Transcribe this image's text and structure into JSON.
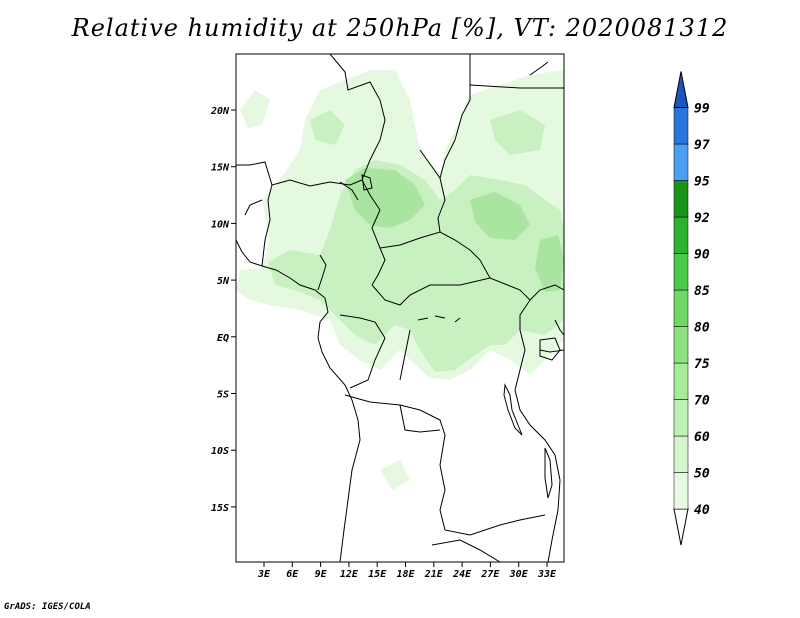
{
  "title": "Relative humidity at 250hPa [%], VT: 2020081312",
  "credit": "GrADS: IGES/COLA",
  "map": {
    "lon_ticks": [
      "3E",
      "6E",
      "9E",
      "12E",
      "15E",
      "18E",
      "21E",
      "24E",
      "27E",
      "30E",
      "33E"
    ],
    "lat_ticks": [
      "20N",
      "15N",
      "10N",
      "5N",
      "EQ",
      "5S",
      "10S",
      "15S"
    ]
  },
  "colorbar": {
    "levels": [
      "99",
      "97",
      "95",
      "92",
      "90",
      "85",
      "80",
      "75",
      "70",
      "60",
      "50",
      "40"
    ],
    "colors": [
      "#ffffff",
      "#e8fae4",
      "#d4f5cc",
      "#bff0b4",
      "#a8eb9a",
      "#8fe281",
      "#6fd866",
      "#4cc94a",
      "#2eb12e",
      "#1a941a",
      "#4b9ef0",
      "#2a75dd",
      "#1a55c0"
    ]
  },
  "colors": {
    "humidity_light": "#e5f8e0",
    "humidity_mid": "#c9f0c1",
    "humidity_strong": "#a9e4a0",
    "border": "#000000"
  }
}
